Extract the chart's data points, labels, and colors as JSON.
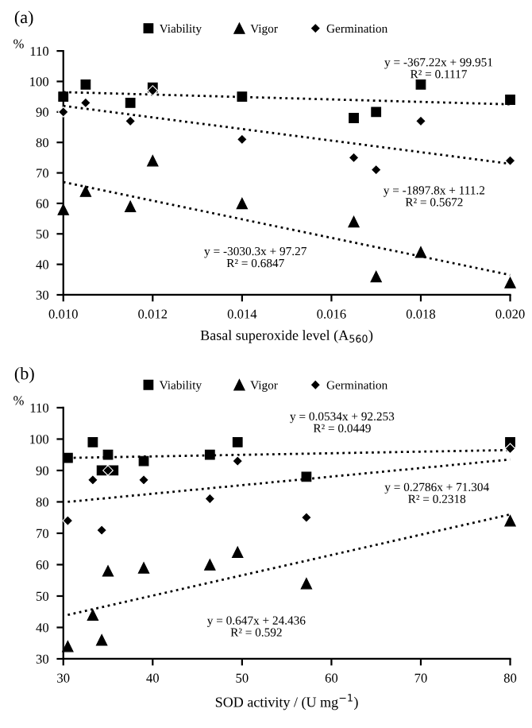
{
  "chart_data": [
    {
      "type": "scatter",
      "title": "(a)",
      "ylabel": "%",
      "xlabel": "Basal superoxide level (A$_{560}$)",
      "xlim": [
        0.01,
        0.02
      ],
      "xticks": [
        {
          "value": 0.01,
          "label": "0.010"
        },
        {
          "value": 0.012,
          "label": "0.012"
        },
        {
          "value": 0.014,
          "label": "0.014"
        },
        {
          "value": 0.016,
          "label": "0.016"
        },
        {
          "value": 0.018,
          "label": "0.018"
        },
        {
          "value": 0.02,
          "label": "0.020"
        }
      ],
      "ylim": [
        30,
        110
      ],
      "yticks": [
        30,
        40,
        50,
        60,
        70,
        80,
        90,
        100,
        110
      ],
      "grid": false,
      "legend": "top",
      "x": [
        0.01,
        0.0105,
        0.0115,
        0.012,
        0.014,
        0.0165,
        0.017,
        0.018,
        0.02
      ],
      "series": [
        {
          "name": "Viability",
          "color": "#000000",
          "marker": "square",
          "values": [
            95,
            99,
            93,
            98,
            95,
            88,
            90,
            99,
            94
          ]
        },
        {
          "name": "Vigor",
          "color": "#000000",
          "marker": "triangle",
          "values": [
            58,
            64,
            59,
            74,
            60,
            54,
            36,
            44,
            34
          ]
        },
        {
          "name": "Germination",
          "color": "#000000",
          "marker": "diamond",
          "values": [
            90,
            93,
            87,
            97,
            81,
            75,
            71,
            87,
            74
          ]
        },
        {
          "type": "line",
          "color": "#000000",
          "line_style": "dotted",
          "x": [
            0.01,
            0.02
          ],
          "values": [
            96.5,
            92.5
          ]
        },
        {
          "type": "line",
          "color": "#000000",
          "line_style": "dotted",
          "x": [
            0.01,
            0.02
          ],
          "values": [
            92,
            73
          ]
        },
        {
          "type": "line",
          "color": "#000000",
          "line_style": "dotted",
          "x": [
            0.01,
            0.02
          ],
          "values": [
            67,
            36.5
          ]
        }
      ],
      "annotations": [
        "y = -367.22x + 99.951\nR² = 0.1117",
        "y = -1897.8x + 111.2\nR² = 0.5672",
        "y = -3030.3x + 97.27\nR² = 0.6847"
      ]
    },
    {
      "type": "scatter",
      "title": "(b)",
      "ylabel": "%",
      "xlabel": "SOD activity / (U mg$^{−1}$)",
      "xlim": [
        30,
        80
      ],
      "xticks": [
        30,
        40,
        50,
        60,
        70,
        80
      ],
      "ylim": [
        30,
        110
      ],
      "yticks": [
        30,
        40,
        50,
        60,
        70,
        80,
        90,
        100,
        110
      ],
      "grid": false,
      "legend": "top",
      "series": [
        {
          "name": "Viability",
          "color": "#000000",
          "marker": "square",
          "x": [
            30.5,
            33.3,
            34.3,
            35.6,
            35.0,
            39.0,
            46.4,
            49.5,
            57.2,
            80
          ],
          "values": [
            94,
            99,
            90,
            90,
            95,
            93,
            95,
            99,
            88,
            99
          ]
        },
        {
          "name": "Vigor",
          "color": "#000000",
          "marker": "triangle",
          "x": [
            30.5,
            33.3,
            34.3,
            35.0,
            39.0,
            46.4,
            49.5,
            57.2,
            80
          ],
          "values": [
            34,
            44,
            36,
            58,
            59,
            60,
            64,
            54,
            74
          ]
        },
        {
          "name": "Germination",
          "color": "#000000",
          "marker": "diamond",
          "x": [
            30.5,
            33.3,
            34.3,
            35.0,
            39.0,
            46.4,
            49.5,
            57.2,
            80
          ],
          "values": [
            74,
            87,
            71,
            90,
            87,
            81,
            93,
            75,
            97
          ]
        },
        {
          "type": "line",
          "color": "#000000",
          "line_style": "dotted",
          "x": [
            30.5,
            80
          ],
          "values": [
            94,
            96.5
          ]
        },
        {
          "type": "line",
          "color": "#000000",
          "line_style": "dotted",
          "x": [
            30.5,
            80
          ],
          "values": [
            80,
            93.5
          ]
        },
        {
          "type": "line",
          "color": "#000000",
          "line_style": "dotted",
          "x": [
            30.5,
            80
          ],
          "values": [
            44,
            76
          ]
        }
      ],
      "annotations": [
        "y = 0.0534x + 92.253\nR² = 0.0449",
        "y = 0.2786x + 71.304\nR² = 0.2318",
        "y = 0.647x + 24.436\nR² = 0.592"
      ]
    }
  ]
}
